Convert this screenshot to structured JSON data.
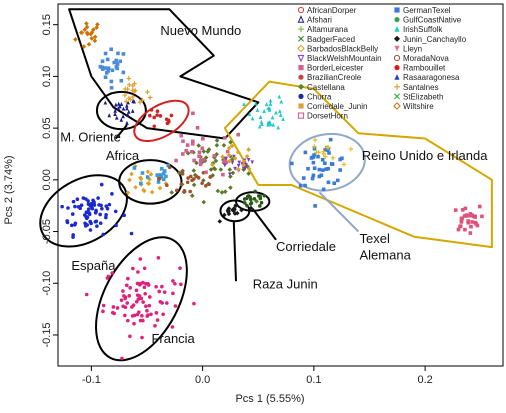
{
  "chart_data": {
    "type": "scatter",
    "xlabel": "Pcs 1 (5.55%)",
    "ylabel": "Pcs 2 (3.74%)",
    "xlim": [
      -0.13,
      0.27
    ],
    "ylim": [
      -0.18,
      0.17
    ],
    "x_ticks": [
      -0.1,
      0.0,
      0.1,
      0.2
    ],
    "x_tick_labels": [
      "-0.1",
      "0.0",
      "0.1",
      "0.2"
    ],
    "y_ticks": [
      -0.15,
      -0.1,
      -0.05,
      0.0,
      0.05,
      0.1,
      0.15
    ],
    "y_tick_labels": [
      "-0.15",
      "-0.10",
      "-0.05",
      "0.00",
      "0.05",
      "0.10",
      "0.15"
    ],
    "grid": false,
    "legend_placement": "top-right",
    "legend_columns": [
      [
        {
          "name": "AfricanDorper",
          "color": "#e03c3c",
          "marker": "circle-open"
        },
        {
          "name": "Afshari",
          "color": "#1a1a8c",
          "marker": "triangle-open"
        },
        {
          "name": "Altamurana",
          "color": "#7cc24a",
          "marker": "plus"
        },
        {
          "name": "BadgerFaced",
          "color": "#2e8b2e",
          "marker": "x"
        },
        {
          "name": "BarbadosBlackBelly",
          "color": "#e0a020",
          "marker": "diamond-open"
        },
        {
          "name": "BlackWelshMountain",
          "color": "#7a3fbf",
          "marker": "triangle-down-open"
        },
        {
          "name": "BorderLeicester",
          "color": "#d06090",
          "marker": "square-x"
        },
        {
          "name": "BrazilianCreole",
          "color": "#c84040",
          "marker": "star"
        },
        {
          "name": "Castellana",
          "color": "#5a8a2a",
          "marker": "diamond-plus"
        },
        {
          "name": "Churra",
          "color": "#1a2aa0",
          "marker": "circle-plus"
        },
        {
          "name": "Corriedale_Junin",
          "color": "#d8a040",
          "marker": "square-star"
        },
        {
          "name": "DorsetHorn",
          "color": "#e0507a",
          "marker": "square-open"
        }
      ],
      [
        {
          "name": "GermanTexel",
          "color": "#3a7ad8",
          "marker": "square"
        },
        {
          "name": "GulfCoastNative",
          "color": "#3aa04a",
          "marker": "circle"
        },
        {
          "name": "IrishSuffolk",
          "color": "#20c8c8",
          "marker": "triangle"
        },
        {
          "name": "Junin_Canchayllo",
          "color": "#1a1a1a",
          "marker": "diamond"
        },
        {
          "name": "Lleyn",
          "color": "#e070a0",
          "marker": "triangle-down"
        },
        {
          "name": "MoradaNova",
          "color": "#a0522d",
          "marker": "circle-open"
        },
        {
          "name": "Rambouillet",
          "color": "#d81a1a",
          "marker": "circle"
        },
        {
          "name": "Rasaaragonesa",
          "color": "#2040c0",
          "marker": "triangle"
        },
        {
          "name": "Santalnes",
          "color": "#e0a030",
          "marker": "plus"
        },
        {
          "name": "StElizabeth",
          "color": "#30b030",
          "marker": "x"
        },
        {
          "name": "Wiltshire",
          "color": "#d07000",
          "marker": "diamond-open"
        }
      ]
    ],
    "annotations": [
      {
        "text": "Nuevo Mundo",
        "x": -0.038,
        "y": 0.14
      },
      {
        "text": "M. Oriente",
        "x": -0.128,
        "y": 0.037
      },
      {
        "text": "Africa",
        "x": -0.087,
        "y": 0.019
      },
      {
        "text": "Reino Unido e Irlanda",
        "x": 0.143,
        "y": 0.019
      },
      {
        "text": "España",
        "x": -0.118,
        "y": -0.087
      },
      {
        "text": "Corriedale",
        "x": 0.066,
        "y": -0.069
      },
      {
        "text": "Texel",
        "x": 0.141,
        "y": -0.061
      },
      {
        "text": "Alemana",
        "x": 0.141,
        "y": -0.077
      },
      {
        "text": "Raza Junin",
        "x": 0.045,
        "y": -0.105
      },
      {
        "text": "Francia",
        "x": -0.046,
        "y": -0.158
      }
    ],
    "regions": [
      {
        "name": "Nuevo Mundo",
        "shape": "polygon",
        "color": "#000000",
        "points": [
          [
            -0.12,
            0.165
          ],
          [
            -0.03,
            0.165
          ],
          [
            0.01,
            0.12
          ],
          [
            -0.02,
            0.1
          ],
          [
            0.05,
            0.075
          ],
          [
            0.02,
            0.04
          ],
          [
            -0.05,
            0.05
          ],
          [
            -0.08,
            0.07
          ],
          [
            -0.1,
            0.1
          ]
        ]
      },
      {
        "name": "Reino Unido e Irlanda",
        "shape": "polygon",
        "color": "#d4a800",
        "points": [
          [
            0.02,
            0.05
          ],
          [
            0.06,
            0.095
          ],
          [
            0.1,
            0.088
          ],
          [
            0.14,
            0.045
          ],
          [
            0.2,
            0.04
          ],
          [
            0.26,
            0.0
          ],
          [
            0.26,
            -0.065
          ],
          [
            0.19,
            -0.055
          ],
          [
            0.08,
            -0.005
          ],
          [
            0.05,
            -0.005
          ]
        ]
      },
      {
        "name": "M. Oriente",
        "shape": "ellipse",
        "color": "#000000",
        "cx": -0.073,
        "cy": 0.067,
        "rx": 0.022,
        "ry": 0.018,
        "rotation": 0
      },
      {
        "name": "Africa",
        "shape": "ellipse",
        "color": "#d42020",
        "cx": -0.037,
        "cy": 0.057,
        "rx": 0.027,
        "ry": 0.015,
        "rotation": -30
      },
      {
        "name": "Middle cluster",
        "shape": "ellipse",
        "color": "#000000",
        "cx": -0.047,
        "cy": -0.002,
        "rx": 0.028,
        "ry": 0.021,
        "rotation": 0
      },
      {
        "name": "España",
        "shape": "ellipse",
        "color": "#000000",
        "cx": -0.107,
        "cy": -0.03,
        "rx": 0.042,
        "ry": 0.03,
        "rotation": -30
      },
      {
        "name": "Francia",
        "shape": "ellipse",
        "color": "#000000",
        "cx": -0.055,
        "cy": -0.115,
        "rx": 0.06,
        "ry": 0.036,
        "rotation": -62
      },
      {
        "name": "Corriedale",
        "shape": "ellipse",
        "color": "#000000",
        "cx": 0.045,
        "cy": -0.021,
        "rx": 0.015,
        "ry": 0.009,
        "rotation": 0
      },
      {
        "name": "Raza Junin",
        "shape": "ellipse",
        "color": "#000000",
        "cx": 0.029,
        "cy": -0.03,
        "rx": 0.013,
        "ry": 0.01,
        "rotation": 0
      },
      {
        "name": "Texel Alemana",
        "shape": "ellipse",
        "color": "#90a8c8",
        "cx": 0.112,
        "cy": 0.017,
        "rx": 0.034,
        "ry": 0.027,
        "rotation": -10
      }
    ],
    "leaders": [
      {
        "from": [
          -0.078,
          0.04
        ],
        "to": [
          -0.068,
          0.053
        ],
        "color": "#000000"
      },
      {
        "from": [
          0.028,
          -0.04
        ],
        "to": [
          0.03,
          -0.098
        ],
        "color": "#000000"
      },
      {
        "from": [
          0.045,
          -0.028
        ],
        "to": [
          0.066,
          -0.058
        ],
        "color": "#000000"
      },
      {
        "from": [
          0.105,
          -0.012
        ],
        "to": [
          0.14,
          -0.05
        ],
        "color": "#90a8c8"
      }
    ],
    "clusters": [
      {
        "series": "Wiltshire",
        "color": "#d07000",
        "cx": -0.102,
        "cy": 0.14,
        "sx": 0.006,
        "sy": 0.008,
        "n": 18,
        "marker": "diamond"
      },
      {
        "series": "GermanTexel",
        "color": "#4a8ad8",
        "cx": -0.08,
        "cy": 0.11,
        "sx": 0.006,
        "sy": 0.008,
        "n": 25,
        "marker": "square"
      },
      {
        "series": "Afshari",
        "color": "#1a1a8c",
        "cx": -0.073,
        "cy": 0.067,
        "sx": 0.007,
        "sy": 0.006,
        "n": 22,
        "marker": "triangle"
      },
      {
        "series": "Santalnes",
        "color": "#e0a030",
        "cx": -0.062,
        "cy": 0.083,
        "sx": 0.007,
        "sy": 0.006,
        "n": 18,
        "marker": "plus"
      },
      {
        "series": "AfricanDorper",
        "color": "#d42020",
        "cx": -0.04,
        "cy": 0.058,
        "sx": 0.008,
        "sy": 0.005,
        "n": 12,
        "marker": "circle"
      },
      {
        "series": "BarbadosBlackBelly",
        "color": "#e0a020",
        "cx": -0.05,
        "cy": -0.002,
        "sx": 0.009,
        "sy": 0.007,
        "n": 20,
        "marker": "diamond"
      },
      {
        "series": "GermanTexel",
        "color": "#3a9ad8",
        "cx": -0.043,
        "cy": 0.005,
        "sx": 0.008,
        "sy": 0.006,
        "n": 14,
        "marker": "square"
      },
      {
        "series": "Churra",
        "color": "#1a2ad0",
        "cx": -0.102,
        "cy": -0.03,
        "sx": 0.014,
        "sy": 0.011,
        "n": 70,
        "marker": "circle"
      },
      {
        "series": "Lleyn",
        "color": "#e0207a",
        "cx": -0.055,
        "cy": -0.115,
        "sx": 0.017,
        "sy": 0.017,
        "n": 85,
        "marker": "circle"
      },
      {
        "series": "Castellana",
        "color": "#5a7a2a",
        "cx": 0.008,
        "cy": 0.01,
        "sx": 0.018,
        "sy": 0.012,
        "n": 55,
        "marker": "diamond"
      },
      {
        "series": "MoradaNova",
        "color": "#a0522d",
        "cx": -0.01,
        "cy": 0.002,
        "sx": 0.014,
        "sy": 0.012,
        "n": 25,
        "marker": "circle"
      },
      {
        "series": "BorderLeicester",
        "color": "#d06090",
        "cx": 0.0,
        "cy": 0.025,
        "sx": 0.02,
        "sy": 0.012,
        "n": 28,
        "marker": "square"
      },
      {
        "series": "BlackWelshMountain",
        "color": "#7a3fbf",
        "cx": 0.032,
        "cy": 0.013,
        "sx": 0.008,
        "sy": 0.005,
        "n": 18,
        "marker": "triangle-down"
      },
      {
        "series": "BarbadosBlackBelly",
        "color": "#e0a020",
        "cx": 0.03,
        "cy": 0.02,
        "sx": 0.008,
        "sy": 0.006,
        "n": 14,
        "marker": "diamond"
      },
      {
        "series": "Corriedale_Junin",
        "color": "#2a5a1a",
        "cx": 0.045,
        "cy": -0.021,
        "sx": 0.007,
        "sy": 0.004,
        "n": 20,
        "marker": "circle"
      },
      {
        "series": "Junin_Canchayllo",
        "color": "#1a1a1a",
        "cx": 0.029,
        "cy": -0.03,
        "sx": 0.006,
        "sy": 0.004,
        "n": 16,
        "marker": "diamond"
      },
      {
        "series": "IrishSuffolk",
        "color": "#20c8c8",
        "cx": 0.06,
        "cy": 0.065,
        "sx": 0.008,
        "sy": 0.008,
        "n": 30,
        "marker": "triangle"
      },
      {
        "series": "GermanTexel",
        "color": "#3a7ad8",
        "cx": 0.108,
        "cy": 0.015,
        "sx": 0.012,
        "sy": 0.01,
        "n": 40,
        "marker": "square"
      },
      {
        "series": "Santalnes",
        "color": "#e0c030",
        "cx": 0.108,
        "cy": 0.025,
        "sx": 0.008,
        "sy": 0.006,
        "n": 12,
        "marker": "plus"
      },
      {
        "series": "DorsetHorn",
        "color": "#e0507a",
        "cx": 0.237,
        "cy": -0.038,
        "sx": 0.006,
        "sy": 0.006,
        "n": 30,
        "marker": "square"
      }
    ]
  }
}
